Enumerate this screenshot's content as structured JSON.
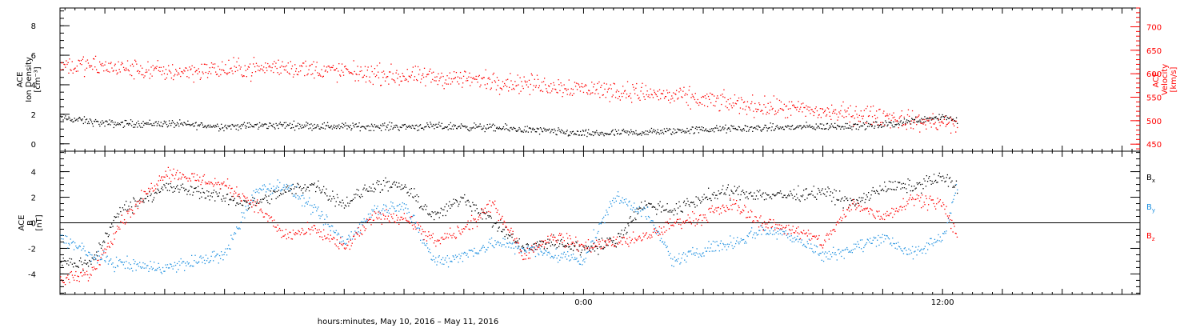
{
  "chart_data": [
    {
      "type": "scatter",
      "panel": "plasma",
      "ylabel_left_lines": [
        "ACE",
        "Ion Density",
        "[cm⁻³]"
      ],
      "ylabel_right_lines": [
        "ACE",
        "Velocity",
        "[km/s]"
      ],
      "ylim_left": [
        -0.5,
        9.2
      ],
      "ylim_right": [
        435,
        740
      ],
      "yticks_left": [
        0,
        2,
        4,
        6,
        8
      ],
      "yticks_right": [
        450,
        500,
        550,
        600,
        650,
        700
      ],
      "grid": false,
      "series": [
        {
          "axis": "left",
          "color": "#000000",
          "x": [
            -17.5,
            -16,
            -14,
            -12,
            -10,
            -8,
            -6,
            -4,
            -2,
            0,
            2,
            4,
            6,
            8,
            10,
            11,
            12,
            12.5
          ],
          "values": [
            1.8,
            1.4,
            1.4,
            1.2,
            1.3,
            1.2,
            1.2,
            1.2,
            1.0,
            0.7,
            0.8,
            1.0,
            1.1,
            1.2,
            1.3,
            1.6,
            1.9,
            1.6
          ]
        },
        {
          "axis": "right",
          "color": "#ff0000",
          "x": [
            -17.5,
            -16,
            -14,
            -12,
            -10,
            -8,
            -6,
            -4,
            -2,
            0,
            2,
            4,
            6,
            8,
            10,
            11,
            12,
            12.5
          ],
          "values": [
            620,
            615,
            605,
            610,
            615,
            605,
            595,
            590,
            580,
            570,
            560,
            545,
            530,
            520,
            510,
            500,
            495,
            490
          ]
        }
      ]
    },
    {
      "type": "scatter",
      "panel": "magnetic-field",
      "ylabel_lines": [
        "ACE",
        "B",
        "[nT]"
      ],
      "ylim": [
        -5.6,
        5.6
      ],
      "yticks": [
        -4,
        -2,
        0,
        2,
        4
      ],
      "zero_line": true,
      "grid": false,
      "series": [
        {
          "name_main": "B",
          "name_sub": "x",
          "color": "#000000",
          "x": [
            -17.5,
            -16.5,
            -15.5,
            -14,
            -13,
            -12,
            -11,
            -10,
            -9,
            -8,
            -7,
            -6,
            -5,
            -4,
            -3,
            -2,
            -1,
            0,
            1,
            2,
            3,
            4,
            5,
            6,
            7,
            8,
            9,
            10,
            11,
            12,
            12.5
          ],
          "values": [
            -3.0,
            -3.2,
            1.0,
            2.8,
            2.5,
            2.0,
            1.5,
            2.5,
            3.0,
            1.5,
            3.0,
            2.8,
            0.5,
            2.0,
            0.0,
            -2.0,
            -1.5,
            -2.0,
            -1.5,
            1.5,
            1.0,
            2.0,
            2.5,
            2.2,
            2.2,
            2.5,
            1.5,
            2.8,
            2.9,
            3.6,
            2.8
          ]
        },
        {
          "name_main": "B",
          "name_sub": "y",
          "color": "#1e90e0",
          "x": [
            -17.5,
            -16.5,
            -15.5,
            -14,
            -13,
            -12,
            -11,
            -10,
            -9,
            -8,
            -7,
            -6,
            -5,
            -4,
            -3,
            -2,
            -1,
            0,
            1,
            2,
            3,
            4,
            5,
            6,
            7,
            8,
            9,
            10,
            11,
            12,
            12.5
          ],
          "values": [
            -1.0,
            -2.5,
            -3.2,
            -3.5,
            -3.0,
            -2.5,
            2.5,
            3.0,
            1.0,
            -1.5,
            1.0,
            1.5,
            -3.0,
            -2.5,
            -1.5,
            -2.0,
            -2.5,
            -2.8,
            2.0,
            1.0,
            -3.0,
            -2.0,
            -1.5,
            -0.5,
            -1.0,
            -2.5,
            -2.0,
            -1.0,
            -2.5,
            -1.0,
            3.0
          ]
        },
        {
          "name_main": "B",
          "name_sub": "z",
          "color": "#ff0000",
          "x": [
            -17.5,
            -16.5,
            -15.5,
            -14,
            -13,
            -12,
            -11,
            -10,
            -9,
            -8,
            -7,
            -6,
            -5,
            -4,
            -3,
            -2,
            -1,
            0,
            1,
            2,
            3,
            4,
            5,
            6,
            7,
            8,
            9,
            10,
            11,
            12,
            12.5
          ],
          "values": [
            -4.5,
            -4.0,
            0.0,
            4.0,
            3.5,
            3.0,
            1.5,
            -1.0,
            -0.5,
            -2.0,
            0.5,
            0.5,
            -1.5,
            -0.5,
            1.5,
            -2.5,
            -1.0,
            -1.8,
            -1.5,
            -1.2,
            0.0,
            0.5,
            1.5,
            0.0,
            -0.5,
            -1.5,
            1.5,
            0.5,
            2.0,
            1.5,
            -1.2
          ]
        }
      ]
    }
  ],
  "x_axis": {
    "unit": "hours",
    "range": [
      -17.5,
      18.6
    ],
    "tick_labels": [
      {
        "x": 0,
        "label": "0:00"
      },
      {
        "x": 12,
        "label": "12:00"
      }
    ],
    "tick_step": 2,
    "minor_tick_step": 0.333333,
    "xlabel": "hours:minutes, May 10, 2016 – May 11, 2016"
  }
}
